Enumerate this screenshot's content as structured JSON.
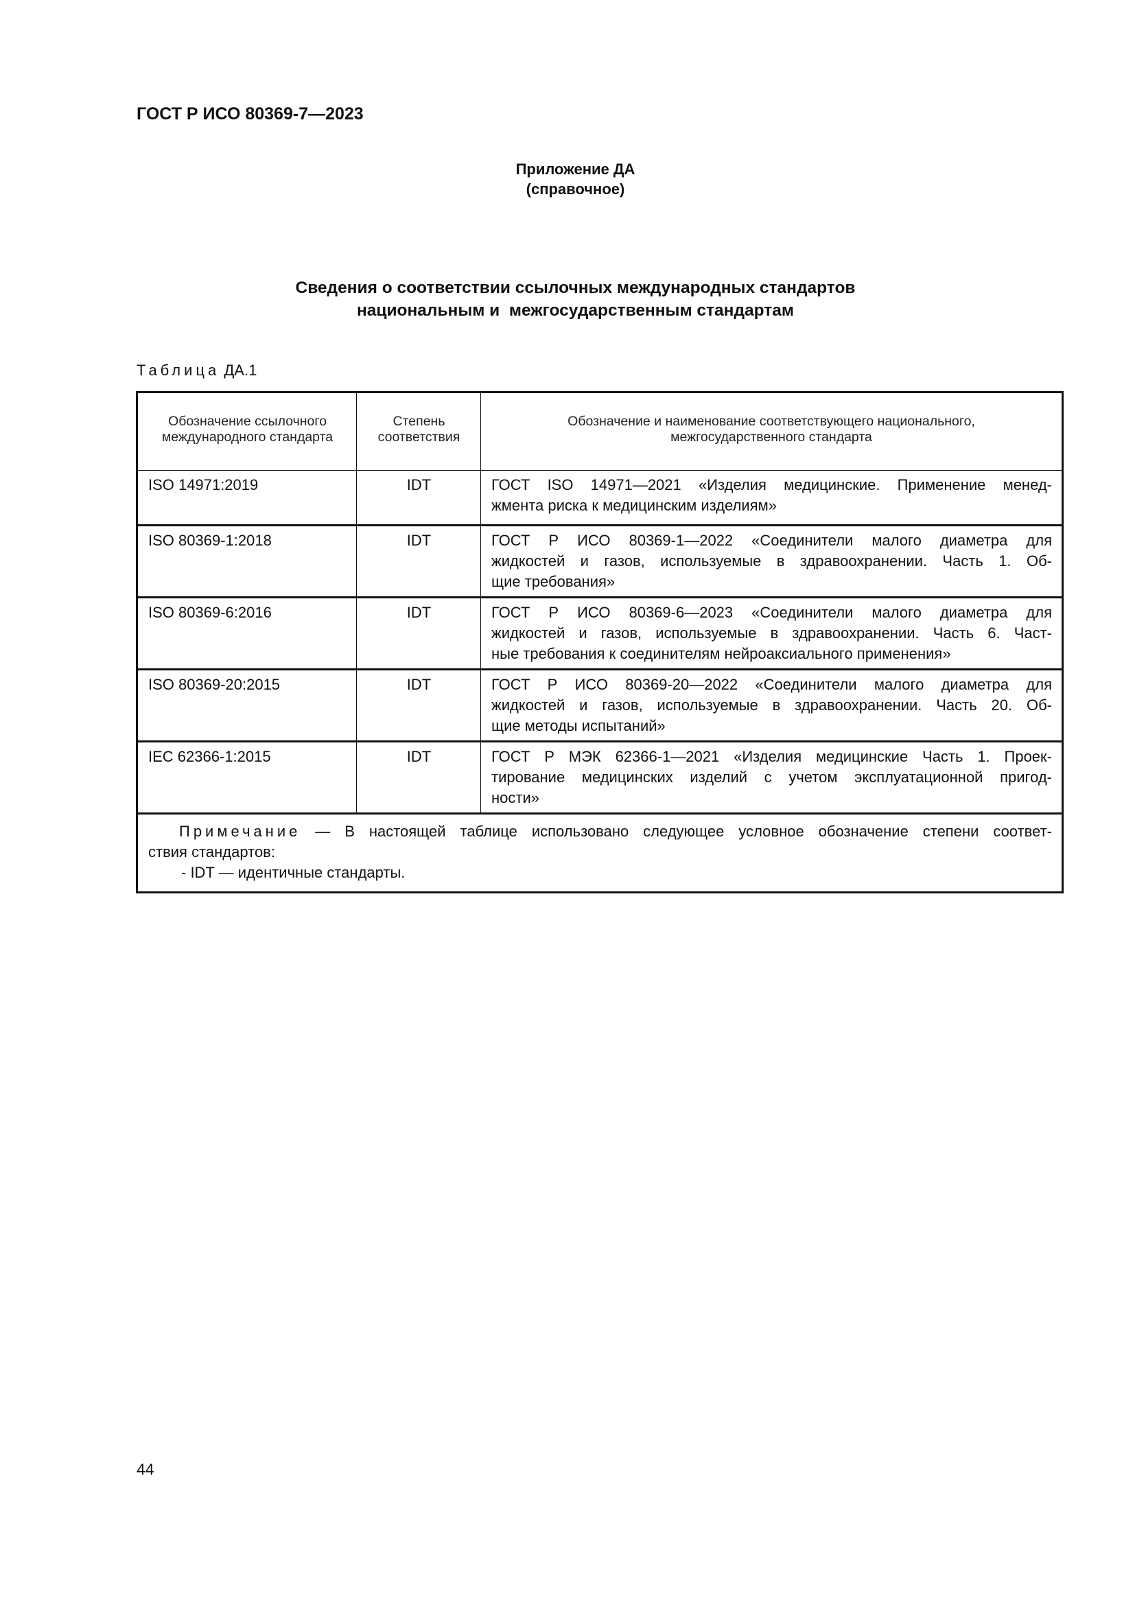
{
  "document": {
    "code": "ГОСТ Р ИСО 80369-7—2023",
    "annex_title": "Приложение ДА",
    "annex_type": "(справочное)",
    "title_line1": "Сведения о соответствии ссылочных международных стандартов",
    "title_line2": "национальным и  межгосударственным стандартам",
    "table_caption_word": "Таблица",
    "table_caption_num": "ДА.1",
    "page_number": "44"
  },
  "table": {
    "headers": [
      "Обозначение ссылочного международного стандарта",
      "Степень соответствия",
      "Обозначение и наименование соответствующего национального, межгосударственного стандарта"
    ],
    "rows": [
      {
        "ref": "ISO 14971:2019",
        "degree": "IDT",
        "lines": [
          "ГОСТ ISO 14971—2021 «Изделия медицинские. Применение менед-",
          "жмента риска к медицинским изделиям»"
        ]
      },
      {
        "ref": "ISO 80369-1:2018",
        "degree": "IDT",
        "lines": [
          "ГОСТ Р ИСО 80369-1—2022 «Соединители малого диаметра для",
          "жидкостей и газов, используемые в здравоохранении. Часть 1. Об-",
          "щие требования»"
        ]
      },
      {
        "ref": "ISO 80369-6:2016",
        "degree": "IDT",
        "lines": [
          "ГОСТ Р ИСО 80369-6—2023 «Соединители малого диаметра для",
          "жидкостей и газов, используемые в здравоохранении. Часть 6. Част-",
          "ные требования к соединителям нейроаксиального применения»"
        ]
      },
      {
        "ref": "ISO 80369-20:2015",
        "degree": "IDT",
        "lines": [
          "ГОСТ Р ИСО 80369-20—2022 «Соединители малого диаметра для",
          "жидкостей и газов, используемые в здравоохранении. Часть 20. Об-",
          "щие методы испытаний»"
        ]
      },
      {
        "ref": "IEC 62366-1:2015",
        "degree": "IDT",
        "lines": [
          "ГОСТ Р МЭК 62366-1—2021 «Изделия медицинские Часть 1. Проек-",
          "тирование медицинских изделий с учетом эксплуатационной пригод-",
          "ности»"
        ]
      }
    ],
    "note": {
      "label": "Примечание",
      "line1": " — В настоящей таблице использовано следующее условное обозначение степени соответ-",
      "line2": "ствия стандартов:",
      "line3": "- IDT — идентичные стандарты."
    }
  }
}
